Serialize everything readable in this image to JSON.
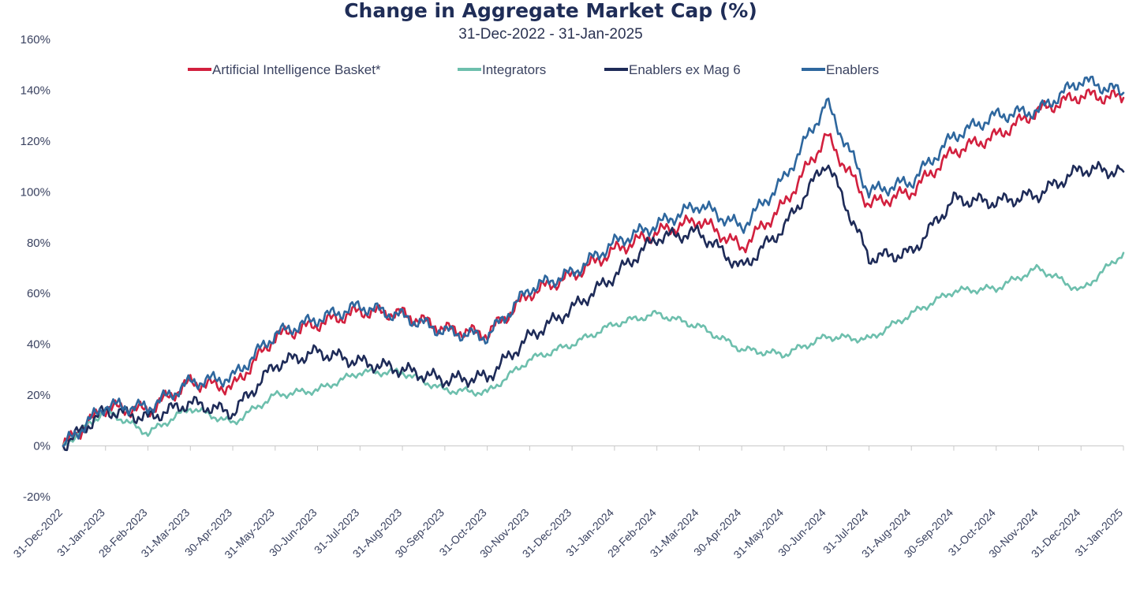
{
  "chart_data": {
    "type": "line",
    "title": "Change in Aggregate Market Cap (%)",
    "subtitle": "31-Dec-2022 - 31-Jan-2025",
    "xlabel": "",
    "ylabel": "",
    "ylim": [
      -20,
      160
    ],
    "yticks": [
      -20,
      0,
      20,
      40,
      60,
      80,
      100,
      120,
      140,
      160
    ],
    "ytick_labels": [
      "-20%",
      "0%",
      "20%",
      "40%",
      "60%",
      "80%",
      "100%",
      "120%",
      "140%",
      "160%"
    ],
    "grid": false,
    "legend_position": "top-center",
    "categories": [
      "31-Dec-2022",
      "31-Jan-2023",
      "28-Feb-2023",
      "31-Mar-2023",
      "30-Apr-2023",
      "31-May-2023",
      "30-Jun-2023",
      "31-Jul-2023",
      "31-Aug-2023",
      "30-Sep-2023",
      "31-Oct-2023",
      "30-Nov-2023",
      "31-Dec-2023",
      "31-Jan-2024",
      "29-Feb-2024",
      "31-Mar-2024",
      "30-Apr-2024",
      "31-May-2024",
      "30-Jun-2024",
      "31-Jul-2024",
      "31-Aug-2024",
      "30-Sep-2024",
      "31-Oct-2024",
      "30-Nov-2024",
      "31-Dec-2024",
      "31-Jan-2025"
    ],
    "series": [
      {
        "name": "Artificial Intelligence Basket*",
        "color": "#d2203e",
        "values": [
          0,
          15,
          14,
          25,
          23,
          43,
          48,
          53,
          52,
          46,
          44,
          60,
          67,
          77,
          84,
          89,
          78,
          95,
          122,
          95,
          100,
          116,
          122,
          132,
          138,
          137
        ]
      },
      {
        "name": "Integrators",
        "color": "#6dbfad",
        "values": [
          0,
          14,
          5,
          15,
          9,
          20,
          22,
          29,
          29,
          22,
          21,
          34,
          40,
          48,
          52,
          47,
          38,
          36,
          43,
          42,
          52,
          61,
          62,
          70,
          61,
          76
        ]
      },
      {
        "name": "Enablers ex Mag 6",
        "color": "#1e2b58",
        "values": [
          0,
          14,
          11,
          17,
          13,
          32,
          37,
          33,
          30,
          26,
          27,
          43,
          54,
          67,
          82,
          84,
          70,
          86,
          112,
          74,
          76,
          97,
          96,
          99,
          109,
          108
        ]
      },
      {
        "name": "Enablers",
        "color": "#2e679e",
        "values": [
          0,
          16,
          15,
          25,
          27,
          44,
          50,
          55,
          51,
          45,
          43,
          62,
          68,
          80,
          87,
          95,
          86,
          105,
          135,
          100,
          104,
          122,
          130,
          132,
          144,
          139
        ]
      }
    ]
  }
}
